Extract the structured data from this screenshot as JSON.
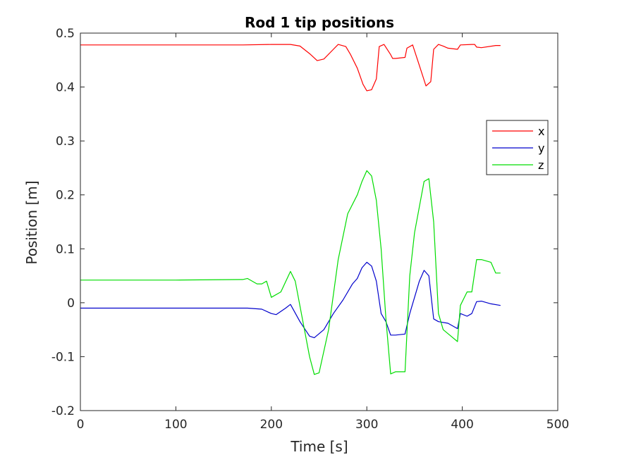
{
  "chart_data": {
    "type": "line",
    "title": "Rod 1 tip positions",
    "xlabel": "Time [s]",
    "ylabel": "Position [m]",
    "xlim": [
      0,
      500
    ],
    "ylim": [
      -0.2,
      0.5
    ],
    "xticks": [
      0,
      100,
      200,
      300,
      400,
      500
    ],
    "xtick_labels": [
      "0",
      "100",
      "200",
      "300",
      "400",
      "500"
    ],
    "yticks": [
      -0.2,
      -0.1,
      0,
      0.1,
      0.2,
      0.3,
      0.4,
      0.5
    ],
    "ytick_labels": [
      "-0.2",
      "-0.1",
      "0",
      "0.1",
      "0.2",
      "0.3",
      "0.4",
      "0.5"
    ],
    "grid": false,
    "legend_position": "right",
    "series": [
      {
        "name": "x",
        "color": "#ff0000",
        "x": [
          0,
          100,
          170,
          200,
          220,
          230,
          240,
          248,
          255,
          265,
          270,
          278,
          283,
          290,
          296,
          300,
          305,
          310,
          313,
          318,
          325,
          327,
          330,
          340,
          342,
          348,
          355,
          362,
          367,
          370,
          375,
          380,
          385,
          395,
          398,
          410,
          413,
          415,
          420,
          435,
          440
        ],
        "values": [
          0.478,
          0.478,
          0.478,
          0.479,
          0.479,
          0.476,
          0.462,
          0.449,
          0.452,
          0.47,
          0.479,
          0.475,
          0.46,
          0.435,
          0.405,
          0.393,
          0.395,
          0.415,
          0.475,
          0.479,
          0.46,
          0.453,
          0.453,
          0.455,
          0.472,
          0.478,
          0.44,
          0.402,
          0.41,
          0.47,
          0.479,
          0.476,
          0.472,
          0.47,
          0.478,
          0.479,
          0.479,
          0.474,
          0.473,
          0.477,
          0.477
        ]
      },
      {
        "name": "y",
        "color": "#0000cc",
        "x": [
          0,
          100,
          175,
          190,
          200,
          205,
          215,
          220,
          230,
          240,
          245,
          255,
          265,
          275,
          285,
          290,
          295,
          300,
          305,
          310,
          315,
          320,
          325,
          330,
          340,
          345,
          355,
          360,
          365,
          370,
          375,
          385,
          395,
          398,
          405,
          410,
          415,
          420,
          430,
          440
        ],
        "values": [
          -0.01,
          -0.01,
          -0.01,
          -0.012,
          -0.02,
          -0.022,
          -0.01,
          -0.003,
          -0.035,
          -0.062,
          -0.065,
          -0.05,
          -0.02,
          0.005,
          0.035,
          0.045,
          0.065,
          0.075,
          0.068,
          0.04,
          -0.02,
          -0.035,
          -0.06,
          -0.06,
          -0.058,
          -0.02,
          0.04,
          0.06,
          0.05,
          -0.03,
          -0.035,
          -0.038,
          -0.048,
          -0.02,
          -0.025,
          -0.02,
          0.002,
          0.003,
          -0.002,
          -0.005
        ]
      },
      {
        "name": "z",
        "color": "#00dd00",
        "x": [
          0,
          100,
          170,
          175,
          185,
          190,
          195,
          200,
          210,
          220,
          225,
          240,
          245,
          250,
          260,
          270,
          280,
          290,
          295,
          300,
          305,
          310,
          315,
          320,
          325,
          330,
          340,
          345,
          350,
          360,
          365,
          370,
          375,
          380,
          395,
          398,
          405,
          410,
          415,
          420,
          430,
          435,
          440
        ],
        "values": [
          0.042,
          0.042,
          0.043,
          0.045,
          0.035,
          0.035,
          0.04,
          0.01,
          0.02,
          0.058,
          0.04,
          -0.1,
          -0.133,
          -0.13,
          -0.05,
          0.08,
          0.165,
          0.2,
          0.225,
          0.245,
          0.235,
          0.19,
          0.1,
          -0.03,
          -0.132,
          -0.128,
          -0.128,
          0.05,
          0.13,
          0.225,
          0.23,
          0.15,
          -0.02,
          -0.05,
          -0.072,
          -0.005,
          0.02,
          0.02,
          0.08,
          0.08,
          0.075,
          0.055,
          0.055
        ]
      }
    ]
  }
}
